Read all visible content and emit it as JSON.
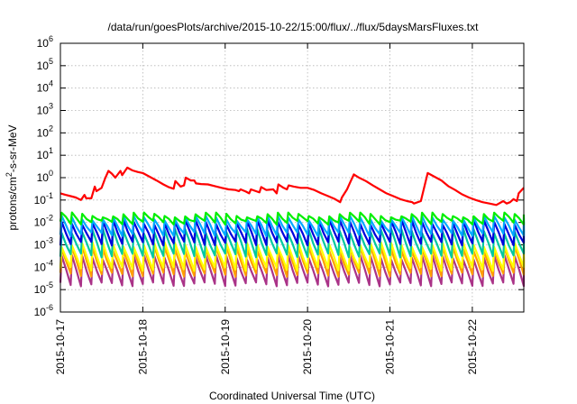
{
  "chart_data": {
    "type": "line",
    "title": "/data/run/goesPlots/archive/2015-10-22/15:00/flux/../flux/5daysMarsFluxes.txt",
    "xlabel": "Coordinated Universal Time (UTC)",
    "ylabel_base": "protons/cm",
    "ylabel_sup": "2",
    "ylabel_tail": "-s-sr-MeV",
    "yscale": "log",
    "ylim": [
      1e-06,
      1000000.0
    ],
    "y_ticks": [
      {
        "base": "10",
        "exp": "-6",
        "value": 1e-06
      },
      {
        "base": "10",
        "exp": "-5",
        "value": 1e-05
      },
      {
        "base": "10",
        "exp": "-4",
        "value": 0.0001
      },
      {
        "base": "10",
        "exp": "-3",
        "value": 0.001
      },
      {
        "base": "10",
        "exp": "-2",
        "value": 0.01
      },
      {
        "base": "10",
        "exp": "-1",
        "value": 0.1
      },
      {
        "base": "10",
        "exp": "0",
        "value": 1
      },
      {
        "base": "10",
        "exp": "1",
        "value": 10
      },
      {
        "base": "10",
        "exp": "2",
        "value": 100
      },
      {
        "base": "10",
        "exp": "3",
        "value": 1000
      },
      {
        "base": "10",
        "exp": "4",
        "value": 10000
      },
      {
        "base": "10",
        "exp": "5",
        "value": 100000
      },
      {
        "base": "10",
        "exp": "6",
        "value": 1000000
      }
    ],
    "x_ticks": [
      "2015-10-17",
      "2015-10-18",
      "2015-10-19",
      "2015-10-20",
      "2015-10-21",
      "2015-10-22"
    ],
    "xlim": [
      "2015-10-17T00:00",
      "2015-10-22T15:00"
    ],
    "grid": true,
    "series": [
      {
        "color": "#ff0000",
        "x": [
          "2015-10-17T00:00",
          "2015-10-17T01:30",
          "2015-10-17T03:00",
          "2015-10-17T04:30",
          "2015-10-17T06:00",
          "2015-10-17T07:00",
          "2015-10-17T07:30",
          "2015-10-17T09:00",
          "2015-10-17T10:00",
          "2015-10-17T10:30",
          "2015-10-17T12:00",
          "2015-10-17T13:00",
          "2015-10-17T14:00",
          "2015-10-17T15:00",
          "2015-10-17T16:00",
          "2015-10-17T17:30",
          "2015-10-17T18:00",
          "2015-10-17T19:30",
          "2015-10-17T21:00",
          "2015-10-17T22:30",
          "2015-10-18T00:00",
          "2015-10-18T02:00",
          "2015-10-18T04:00",
          "2015-10-18T06:00",
          "2015-10-18T07:30",
          "2015-10-18T09:00",
          "2015-10-18T09:30",
          "2015-10-18T11:00",
          "2015-10-18T12:00",
          "2015-10-18T12:30",
          "2015-10-18T14:00",
          "2015-10-18T15:00",
          "2015-10-18T15:30",
          "2015-10-18T17:00",
          "2015-10-18T19:00",
          "2015-10-18T21:00",
          "2015-10-18T23:00",
          "2015-10-19T01:00",
          "2015-10-19T03:00",
          "2015-10-19T04:00",
          "2015-10-19T04:30",
          "2015-10-19T06:00",
          "2015-10-19T07:00",
          "2015-10-19T07:30",
          "2015-10-19T09:00",
          "2015-10-19T10:00",
          "2015-10-19T10:30",
          "2015-10-19T12:00",
          "2015-10-19T14:00",
          "2015-10-19T15:00",
          "2015-10-19T15:30",
          "2015-10-19T17:00",
          "2015-10-19T18:00",
          "2015-10-19T18:30",
          "2015-10-19T20:00",
          "2015-10-19T22:00",
          "2015-10-20T00:00",
          "2015-10-20T02:00",
          "2015-10-20T04:00",
          "2015-10-20T06:00",
          "2015-10-20T08:00",
          "2015-10-20T09:30",
          "2015-10-20T10:00",
          "2015-10-20T11:30",
          "2015-10-20T12:30",
          "2015-10-20T13:30",
          "2015-10-20T15:00",
          "2015-10-20T17:00",
          "2015-10-20T19:00",
          "2015-10-20T21:00",
          "2015-10-20T23:00",
          "2015-10-21T01:00",
          "2015-10-21T03:00",
          "2015-10-21T05:00",
          "2015-10-21T06:30",
          "2015-10-21T07:00",
          "2015-10-21T09:00",
          "2015-10-21T11:00",
          "2015-10-21T13:00",
          "2015-10-21T15:00",
          "2015-10-21T17:00",
          "2015-10-21T19:00",
          "2015-10-21T21:00",
          "2015-10-21T23:00",
          "2015-10-22T01:00",
          "2015-10-22T03:00",
          "2015-10-22T05:00",
          "2015-10-22T07:00",
          "2015-10-22T09:00",
          "2015-10-22T10:00",
          "2015-10-22T11:00",
          "2015-10-22T12:00",
          "2015-10-22T13:00",
          "2015-10-22T13:30",
          "2015-10-22T15:00"
        ],
        "y": [
          0.2,
          0.17,
          0.15,
          0.13,
          0.1,
          0.17,
          0.12,
          0.12,
          0.4,
          0.25,
          0.35,
          0.9,
          2.0,
          1.5,
          1.0,
          2.0,
          1.3,
          2.8,
          2.1,
          1.8,
          1.6,
          1.1,
          0.75,
          0.5,
          0.38,
          0.32,
          0.7,
          0.4,
          0.45,
          1.0,
          0.75,
          0.75,
          0.55,
          0.52,
          0.5,
          0.42,
          0.35,
          0.3,
          0.28,
          0.25,
          0.3,
          0.24,
          0.2,
          0.3,
          0.25,
          0.22,
          0.38,
          0.28,
          0.3,
          0.2,
          0.5,
          0.35,
          0.3,
          0.45,
          0.4,
          0.35,
          0.35,
          0.28,
          0.2,
          0.15,
          0.11,
          0.08,
          0.13,
          0.3,
          0.65,
          1.4,
          1.0,
          0.7,
          0.45,
          0.3,
          0.2,
          0.15,
          0.11,
          0.09,
          0.08,
          0.07,
          0.09,
          1.6,
          1.1,
          0.75,
          0.42,
          0.28,
          0.18,
          0.13,
          0.1,
          0.08,
          0.07,
          0.06,
          0.09,
          0.07,
          0.08,
          0.11,
          0.09,
          0.2,
          0.35
        ]
      },
      {
        "color": "#00ee00",
        "base": 0.015,
        "amp": 1.5
      },
      {
        "color": "#00aaff",
        "base": 0.007,
        "amp": 2.3
      },
      {
        "color": "#0000dd",
        "base": 0.0035,
        "amp": 3.0
      },
      {
        "color": "#00c8a0",
        "base": 0.0012,
        "amp": 3.5
      },
      {
        "color": "#ffff00",
        "base": 0.0003,
        "amp": 3.5
      },
      {
        "color": "#ff9e00",
        "base": 0.00018,
        "amp": 3.8
      },
      {
        "color": "#aa3388",
        "base": 7e-05,
        "amp": 4.0
      }
    ]
  }
}
